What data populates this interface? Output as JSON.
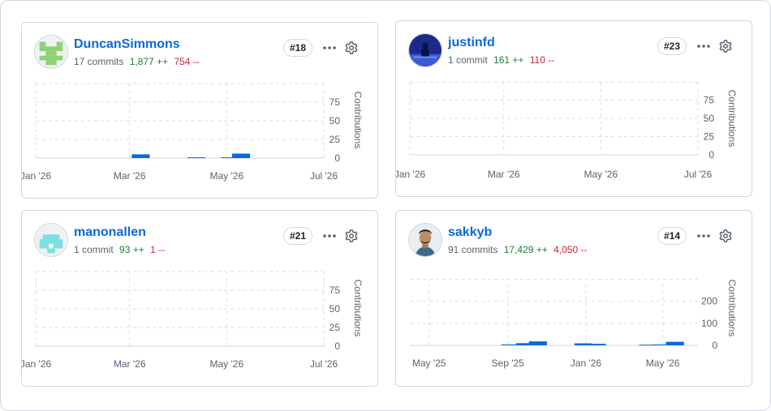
{
  "cards": [
    {
      "username": "DuncanSimmons",
      "commits": "17 commits",
      "additions": "1,877 ++",
      "deletions": "754 --",
      "rank": "#18",
      "avatar_icon": "identicon-green",
      "avatar_color": "#8fd177",
      "chart_data": {
        "type": "bar",
        "ylabel": "Contributions",
        "y_ticks": [
          "75",
          "50",
          "25",
          "0"
        ],
        "ylim": [
          0,
          100
        ],
        "x_ticks": [
          "Jan '26",
          "Mar '26",
          "May '26",
          "Jul '26"
        ],
        "x_range": [
          "2026-01-01",
          "2026-07-01"
        ],
        "bar_color": "#0969da",
        "points": [
          {
            "x": "2026-03-08",
            "y": 5
          },
          {
            "x": "2026-04-12",
            "y": 1
          },
          {
            "x": "2026-05-03",
            "y": 1
          },
          {
            "x": "2026-05-10",
            "y": 6
          }
        ]
      }
    },
    {
      "username": "justinfd",
      "commits": "1 commit",
      "additions": "161 ++",
      "deletions": "110 --",
      "rank": "#23",
      "avatar_icon": "photo-avatar-blue",
      "avatar_color": "#2b3fb0",
      "chart_data": {
        "type": "bar",
        "ylabel": "Contributions",
        "y_ticks": [
          "75",
          "50",
          "25",
          "0"
        ],
        "ylim": [
          0,
          100
        ],
        "x_ticks": [
          "Jan '26",
          "Mar '26",
          "May '26",
          "Jul '26"
        ],
        "x_range": [
          "2026-01-01",
          "2026-07-01"
        ],
        "bar_color": "#0969da",
        "points": []
      }
    },
    {
      "username": "manonallen",
      "commits": "1 commit",
      "additions": "93 ++",
      "deletions": "1 --",
      "rank": "#21",
      "avatar_icon": "identicon-cyan",
      "avatar_color": "#7fdede",
      "chart_data": {
        "type": "bar",
        "ylabel": "Contributions",
        "y_ticks": [
          "75",
          "50",
          "25",
          "0"
        ],
        "ylim": [
          0,
          100
        ],
        "x_ticks": [
          "Jan '26",
          "Mar '26",
          "May '26",
          "Jul '26"
        ],
        "x_range": [
          "2026-01-01",
          "2026-07-01"
        ],
        "bar_color": "#0969da",
        "points": []
      }
    },
    {
      "username": "sakkyb",
      "commits": "91 commits",
      "additions": "17,429 ++",
      "deletions": "4,050 --",
      "rank": "#14",
      "avatar_icon": "photo-avatar-person",
      "avatar_color": "#6b4a3a",
      "chart_data": {
        "type": "bar",
        "ylabel": "Contributions",
        "y_ticks": [
          "200",
          "100",
          "0"
        ],
        "ylim": [
          0,
          280
        ],
        "x_ticks": [
          "May '25",
          "Sep '25",
          "Jan '26",
          "May '26"
        ],
        "x_range": [
          "2025-04-01",
          "2026-06-25"
        ],
        "bar_color": "#0969da",
        "points": [
          {
            "x": "2025-09-05",
            "y": 4
          },
          {
            "x": "2025-09-28",
            "y": 10
          },
          {
            "x": "2025-10-18",
            "y": 18
          },
          {
            "x": "2025-12-28",
            "y": 9
          },
          {
            "x": "2026-01-18",
            "y": 7
          },
          {
            "x": "2026-04-08",
            "y": 3
          },
          {
            "x": "2026-04-29",
            "y": 4
          },
          {
            "x": "2026-05-20",
            "y": 16
          }
        ]
      }
    }
  ]
}
